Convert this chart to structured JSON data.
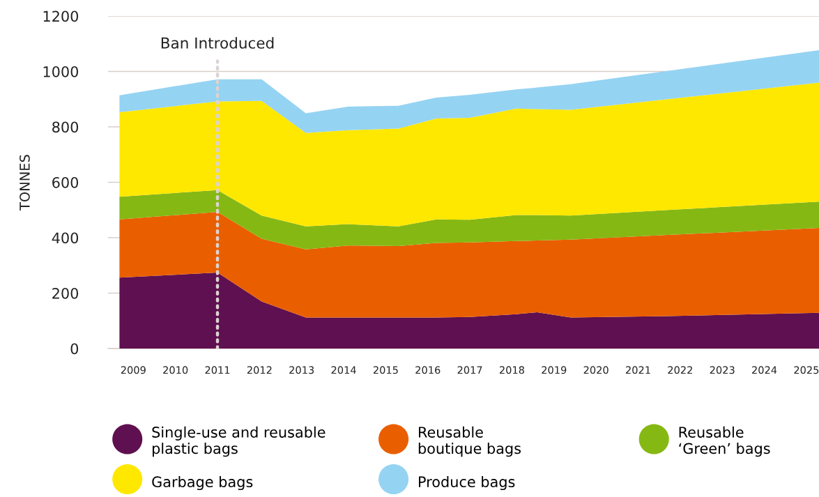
{
  "chart_data": {
    "type": "area",
    "stacked": true,
    "ylabel": "TONNES",
    "x": [
      2008.67,
      2011.0,
      2012.05,
      2013.1,
      2014.1,
      2015.3,
      2016.2,
      2017.0,
      2018.1,
      2018.6,
      2019.4,
      2021.7,
      2025.3
    ],
    "series": [
      {
        "name": "Single-use and reusable\nplastic bags",
        "color": "#5f1050",
        "values": [
          256,
          274,
          170,
          112,
          112,
          112,
          112,
          114,
          124,
          131,
          112,
          117,
          129
        ]
      },
      {
        "name": "Reusable\nboutique bags",
        "color": "#e95f00",
        "values": [
          210,
          219,
          226,
          246,
          260,
          258,
          269,
          269,
          264,
          259,
          281,
          293,
          306
        ]
      },
      {
        "name": "Reusable\n‘Green’ bags",
        "color": "#86b814",
        "values": [
          82,
          79,
          84,
          83,
          77,
          71,
          85,
          82,
          94,
          92,
          87,
          90,
          95
        ]
      },
      {
        "name": "Garbage bags",
        "color": "#ffe800",
        "values": [
          305,
          320,
          414,
          337,
          339,
          353,
          364,
          368,
          384,
          382,
          382,
          400,
          430
        ]
      },
      {
        "name": "Produce bags",
        "color": "#95d3f2",
        "values": [
          61,
          80,
          78,
          71,
          85,
          82,
          76,
          83,
          69,
          78,
          92,
          102,
          117
        ]
      }
    ],
    "xlim": [
      2008.4,
      2025.3
    ],
    "ylim": [
      0,
      1200
    ],
    "xticks": [
      2009,
      2010,
      2011,
      2012,
      2013,
      2014,
      2015,
      2016,
      2017,
      2018,
      2019,
      2020,
      2021,
      2022,
      2023,
      2024,
      2025
    ],
    "yticks": [
      0,
      200,
      400,
      600,
      800,
      1000,
      1200
    ],
    "ref_lines": [
      {
        "axis": "x",
        "value": 2011,
        "label": "Ban Introduced",
        "color": "#dcd3d3",
        "line_style": "dotted"
      }
    ],
    "grid": "y",
    "legend": "bottom"
  }
}
